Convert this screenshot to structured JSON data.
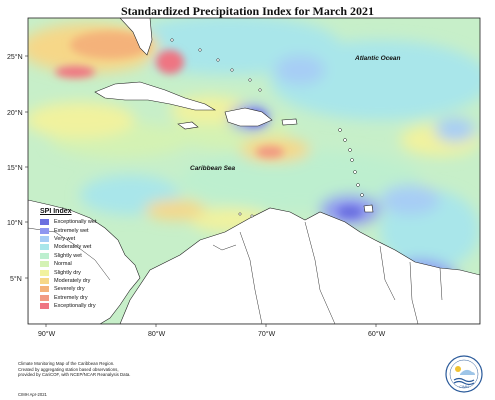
{
  "title": "Standardized Precipitation Index for March 2021",
  "ocean_labels": {
    "atlantic": "Atlantic Ocean",
    "caribbean": "Caribbean Sea"
  },
  "lat_ticks": [
    "25°N",
    "20°N",
    "15°N",
    "10°N",
    "5°N"
  ],
  "lon_ticks": [
    "90°W",
    "80°W",
    "70°W",
    "60°W"
  ],
  "legend": {
    "title": "SPI Index",
    "items": [
      {
        "label": "Exceptionally wet",
        "color": "#6b6fe0"
      },
      {
        "label": "Extremely wet",
        "color": "#8f97f0"
      },
      {
        "label": "Very wet",
        "color": "#a7cdf5"
      },
      {
        "label": "Moderately wet",
        "color": "#a9e6ea"
      },
      {
        "label": "Slightly wet",
        "color": "#bdefcf"
      },
      {
        "label": "Normal",
        "color": "#d4f2b4"
      },
      {
        "label": "Slightly dry",
        "color": "#f1f29e"
      },
      {
        "label": "Moderately dry",
        "color": "#f6d788"
      },
      {
        "label": "Severely dry",
        "color": "#f4b27a"
      },
      {
        "label": "Extremely dry",
        "color": "#f19a82"
      },
      {
        "label": "Exceptionally dry",
        "color": "#ef7582"
      }
    ]
  },
  "credit": {
    "line1": "Climate Monitoring Map of the Caribbean Region.",
    "line2": "Created by aggregating station based observations,",
    "line3": "provided by CariCOF, with NCEP/NCAR Reanalysis Data.",
    "copyright": "CIMH Apr-2021"
  },
  "logo_text": "CIMH"
}
